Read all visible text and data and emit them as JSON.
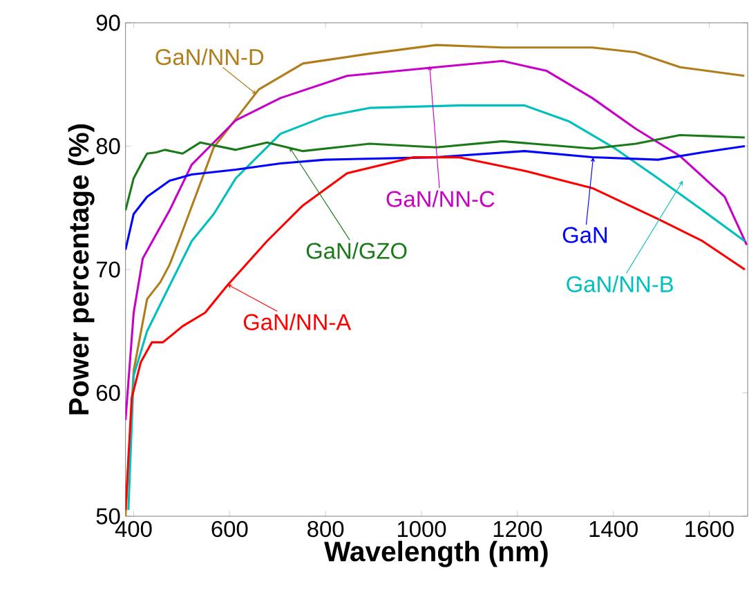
{
  "chart_data": {
    "type": "line",
    "xlabel": "Wavelength (nm)",
    "ylabel": "Power percentage (%)",
    "xlim": [
      383,
      1680
    ],
    "ylim": [
      50,
      90
    ],
    "xticks": [
      400,
      600,
      800,
      1000,
      1200,
      1400,
      1600
    ],
    "yticks": [
      50,
      60,
      70,
      80,
      90
    ],
    "grid": false,
    "line_style": "solid",
    "marker": "none",
    "series": [
      {
        "color": "#b07d1a",
        "x": [
          383,
          400,
          428,
          456,
          475,
          494,
          567,
          661,
          753,
          892,
          1031,
          1169,
          1356,
          1447,
          1539,
          1673
        ],
        "values": [
          50,
          61.8,
          67.6,
          69,
          70.4,
          72.3,
          79.9,
          84.6,
          86.7,
          87.5,
          88.2,
          88,
          88,
          87.6,
          86.4,
          85.7
        ]
      },
      {
        "color": "#c800c8",
        "x": [
          383,
          400,
          419,
          475,
          521,
          613,
          706,
          845,
          1031,
          1169,
          1261,
          1356,
          1447,
          1539,
          1632,
          1678
        ],
        "values": [
          57.8,
          66.5,
          70.9,
          74.8,
          78.5,
          82.1,
          83.9,
          85.7,
          86.4,
          86.9,
          86.1,
          83.9,
          81.4,
          79.2,
          75.9,
          72
        ]
      },
      {
        "color": "#00bfbf",
        "x": [
          389,
          400,
          428,
          475,
          521,
          567,
          613,
          706,
          799,
          892,
          1077,
          1215,
          1308,
          1400,
          1493,
          1586,
          1674
        ],
        "values": [
          50.5,
          61.4,
          65,
          68.7,
          72.3,
          74.5,
          77.4,
          81,
          82.4,
          83.1,
          83.3,
          83.3,
          82,
          79.9,
          77.4,
          74.8,
          72.3
        ]
      },
      {
        "color": "#1a7a1a",
        "x": [
          383,
          400,
          419,
          428,
          447,
          465,
          502,
          539,
          613,
          678,
          753,
          892,
          1031,
          1169,
          1356,
          1447,
          1539,
          1674
        ],
        "values": [
          74.8,
          77.4,
          78.8,
          79.4,
          79.5,
          79.7,
          79.4,
          80.3,
          79.7,
          80.3,
          79.6,
          80.2,
          79.9,
          80.4,
          79.8,
          80.2,
          80.9,
          80.7
        ]
      },
      {
        "color": "#0000ff",
        "x": [
          383,
          400,
          428,
          475,
          521,
          613,
          706,
          799,
          1031,
          1215,
          1356,
          1493,
          1586,
          1674
        ],
        "values": [
          71.6,
          74.5,
          75.9,
          77.2,
          77.7,
          78.1,
          78.6,
          78.9,
          79.1,
          79.6,
          79.1,
          78.9,
          79.5,
          80
        ]
      },
      {
        "color": "#ff0000",
        "x": [
          383,
          396,
          415,
          438,
          461,
          502,
          549,
          595,
          678,
          753,
          845,
          984,
          1077,
          1215,
          1356,
          1493,
          1586,
          1674
        ],
        "values": [
          50.5,
          59.6,
          62.5,
          64.1,
          64.1,
          65.4,
          66.5,
          68.7,
          72.3,
          75.2,
          77.8,
          79.1,
          79.1,
          78,
          76.6,
          74.1,
          72.3,
          70
        ]
      }
    ],
    "annotations": [
      {
        "text": "GaN/NN-D",
        "x": 656,
        "y": 84.2
      },
      {
        "text": "GaN/NN-C",
        "x": 1017,
        "y": 86.5
      },
      {
        "text": "GaN/NN-B",
        "x": 1545,
        "y": 77.2
      },
      {
        "text": "GaN/GZO",
        "x": 725,
        "y": 79.9
      },
      {
        "text": "GaN",
        "x": 1358,
        "y": 79.1
      },
      {
        "text": "GaN/NN-A",
        "x": 595,
        "y": 68.8
      }
    ]
  }
}
